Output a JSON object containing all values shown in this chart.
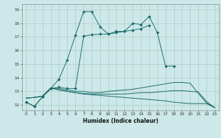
{
  "xlabel": "Humidex (Indice chaleur)",
  "background_color": "#cde8e8",
  "grid_color": "#b0c8c8",
  "line_color": "#1a6b6b",
  "x_values": [
    0,
    1,
    2,
    3,
    4,
    5,
    6,
    7,
    8,
    9,
    10,
    11,
    12,
    13,
    14,
    15,
    16,
    17,
    18,
    19,
    20,
    21,
    22,
    23
  ],
  "line1": [
    12.2,
    11.9,
    12.6,
    13.2,
    13.9,
    15.3,
    17.1,
    18.85,
    18.85,
    17.75,
    17.2,
    17.4,
    17.4,
    18.0,
    17.9,
    18.5,
    17.3,
    14.85,
    14.85,
    null,
    null,
    null,
    null,
    null
  ],
  "line2": [
    12.2,
    11.9,
    12.6,
    13.2,
    13.3,
    13.2,
    13.2,
    17.05,
    17.15,
    17.2,
    17.2,
    17.3,
    17.4,
    17.5,
    17.6,
    17.85,
    null,
    null,
    null,
    null,
    null,
    null,
    null,
    null
  ],
  "line3": [
    12.5,
    12.55,
    12.65,
    13.25,
    13.2,
    13.1,
    13.0,
    13.0,
    12.9,
    12.9,
    13.0,
    13.05,
    13.1,
    13.15,
    13.25,
    13.35,
    13.45,
    13.55,
    13.65,
    13.65,
    13.6,
    12.85,
    12.15,
    11.8
  ],
  "line4": [
    12.5,
    12.55,
    12.65,
    13.25,
    13.1,
    13.0,
    12.9,
    12.8,
    12.75,
    12.7,
    12.65,
    12.6,
    12.55,
    12.5,
    12.45,
    12.4,
    12.35,
    12.3,
    12.2,
    12.15,
    12.1,
    12.1,
    12.1,
    11.8
  ],
  "line5": [
    12.5,
    12.55,
    12.65,
    13.25,
    13.1,
    13.0,
    12.9,
    12.85,
    12.8,
    12.8,
    12.8,
    12.8,
    12.8,
    12.85,
    12.9,
    12.9,
    12.95,
    13.0,
    13.05,
    13.05,
    13.0,
    12.95,
    12.25,
    11.8
  ],
  "ylim": [
    11.6,
    19.4
  ],
  "xlim": [
    -0.5,
    23.5
  ],
  "yticks": [
    12,
    13,
    14,
    15,
    16,
    17,
    18,
    19
  ],
  "xticks": [
    0,
    1,
    2,
    3,
    4,
    5,
    6,
    7,
    8,
    9,
    10,
    11,
    12,
    13,
    14,
    15,
    16,
    17,
    18,
    19,
    20,
    21,
    22,
    23
  ]
}
